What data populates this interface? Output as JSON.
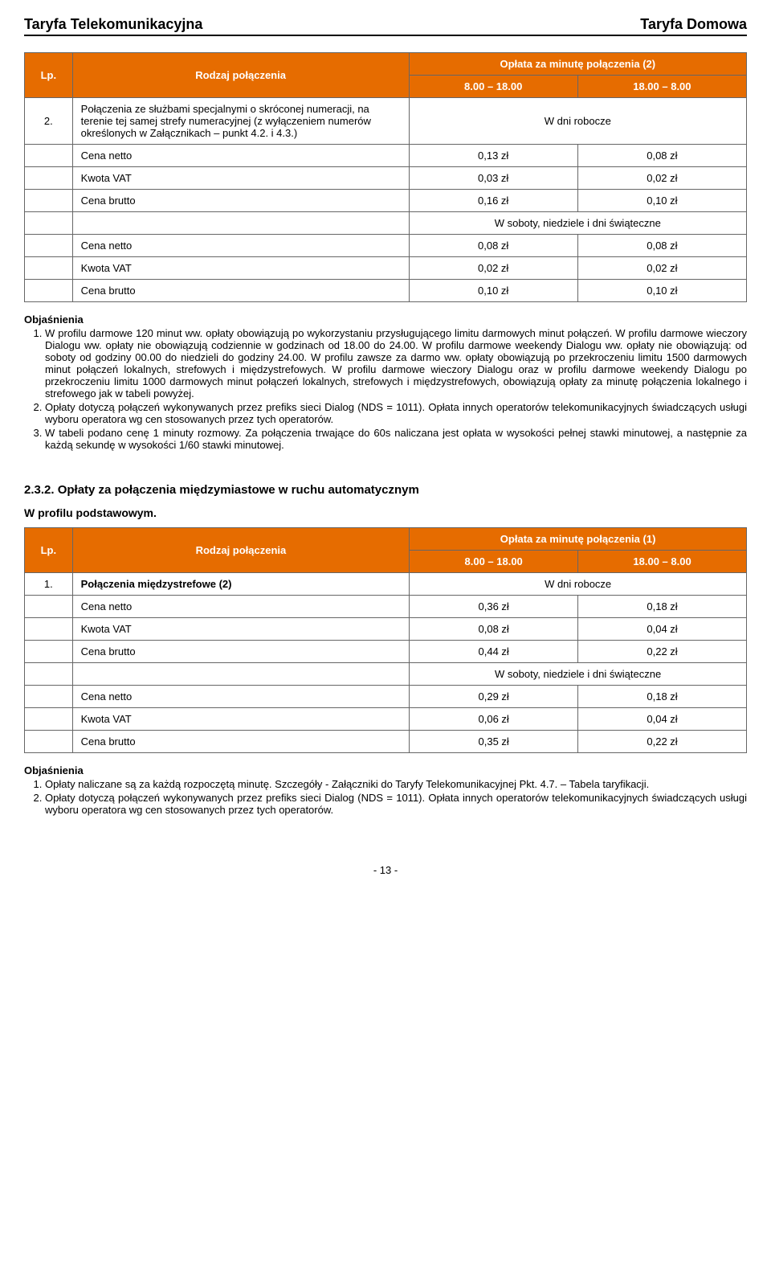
{
  "colors": {
    "header_bg": "#e66c00",
    "header_fg": "#ffffff",
    "border": "#666666",
    "text": "#000000",
    "bg": "#ffffff"
  },
  "header": {
    "left": "Taryfa Telekomunikacyjna",
    "right": "Taryfa Domowa"
  },
  "table1": {
    "head": {
      "lp": "Lp.",
      "rodzaj": "Rodzaj połączenia",
      "oplata": "Opłata za minutę połączenia (2)",
      "time1": "8.00 – 18.00",
      "time2": "18.00 – 8.00"
    },
    "row2": {
      "lp": "2.",
      "desc": "Połączenia ze służbami specjalnymi o skróconej numeracji, na terenie tej samej strefy numeracyjnej (z wyłączeniem numerów określonych w Załącznikach – punkt 4.2. i 4.3.)",
      "span": "W dni robocze"
    },
    "r_cn": {
      "label": "Cena netto",
      "v1": "0,13 zł",
      "v2": "0,08 zł"
    },
    "r_kv": {
      "label": "Kwota VAT",
      "v1": "0,03 zł",
      "v2": "0,02 zł"
    },
    "r_cb": {
      "label": "Cena brutto",
      "v1": "0,16 zł",
      "v2": "0,10 zł"
    },
    "weekend_span": "W soboty, niedziele i dni świąteczne",
    "r_cn2": {
      "label": "Cena netto",
      "v1": "0,08 zł",
      "v2": "0,08 zł"
    },
    "r_kv2": {
      "label": "Kwota VAT",
      "v1": "0,02 zł",
      "v2": "0,02 zł"
    },
    "r_cb2": {
      "label": "Cena brutto",
      "v1": "0,10 zł",
      "v2": "0,10 zł"
    }
  },
  "obj1": {
    "title": "Objaśnienia",
    "i1": "W profilu darmowe 120 minut ww. opłaty obowiązują po wykorzystaniu przysługującego limitu darmowych minut połączeń. W profilu darmowe wieczory Dialogu ww. opłaty nie obowiązują codziennie w godzinach od 18.00 do 24.00. W profilu darmowe weekendy Dialogu ww. opłaty nie obowiązują: od soboty od godziny 00.00 do niedzieli do godziny 24.00. W profilu zawsze za darmo ww. opłaty obowiązują po przekroczeniu limitu 1500 darmowych minut połączeń lokalnych, strefowych i międzystrefowych. W profilu darmowe wieczory Dialogu oraz w profilu darmowe weekendy Dialogu po przekroczeniu limitu 1000 darmowych minut połączeń lokalnych, strefowych i międzystrefowych, obowiązują opłaty za minutę połączenia lokalnego i strefowego jak w tabeli powyżej.",
    "i2": "Opłaty dotyczą połączeń wykonywanych przez prefiks sieci Dialog (NDS = 1011). Opłata innych operatorów telekomunikacyjnych świadczących usługi wyboru operatora wg cen stosowanych przez tych operatorów.",
    "i3": "W tabeli podano cenę 1 minuty rozmowy. Za połączenia trwające do 60s naliczana jest opłata w wysokości pełnej stawki minutowej, a następnie za każdą sekundę w wysokości 1/60 stawki minutowej."
  },
  "section232": "2.3.2.    Opłaty za połączenia międzymiastowe w ruchu automatycznym",
  "profil": "W profilu podstawowym.",
  "table2": {
    "head": {
      "lp": "Lp.",
      "rodzaj": "Rodzaj połączenia",
      "oplata": "Opłata za minutę połączenia (1)",
      "time1": "8.00 – 18.00",
      "time2": "18.00 – 8.00"
    },
    "row1": {
      "lp": "1.",
      "desc": "Połączenia międzystrefowe (2)",
      "span": "W dni robocze"
    },
    "r_cn": {
      "label": "Cena netto",
      "v1": "0,36 zł",
      "v2": "0,18 zł"
    },
    "r_kv": {
      "label": "Kwota VAT",
      "v1": "0,08 zł",
      "v2": "0,04 zł"
    },
    "r_cb": {
      "label": "Cena brutto",
      "v1": "0,44 zł",
      "v2": "0,22 zł"
    },
    "weekend_span": "W soboty, niedziele i dni świąteczne",
    "r_cn2": {
      "label": "Cena netto",
      "v1": "0,29 zł",
      "v2": "0,18 zł"
    },
    "r_kv2": {
      "label": "Kwota VAT",
      "v1": "0,06 zł",
      "v2": "0,04 zł"
    },
    "r_cb2": {
      "label": "Cena brutto",
      "v1": "0,35 zł",
      "v2": "0,22 zł"
    }
  },
  "obj2": {
    "title": "Objaśnienia",
    "i1": "Opłaty naliczane są za każdą rozpoczętą minutę. Szczegóły - Załączniki do Taryfy Telekomunikacyjnej Pkt. 4.7. – Tabela taryfikacji.",
    "i2": "Opłaty dotyczą połączeń wykonywanych przez prefiks sieci Dialog (NDS = 1011). Opłata innych operatorów telekomunikacyjnych świadczących usługi wyboru operatora wg cen stosowanych przez tych operatorów."
  },
  "page": "- 13 -"
}
